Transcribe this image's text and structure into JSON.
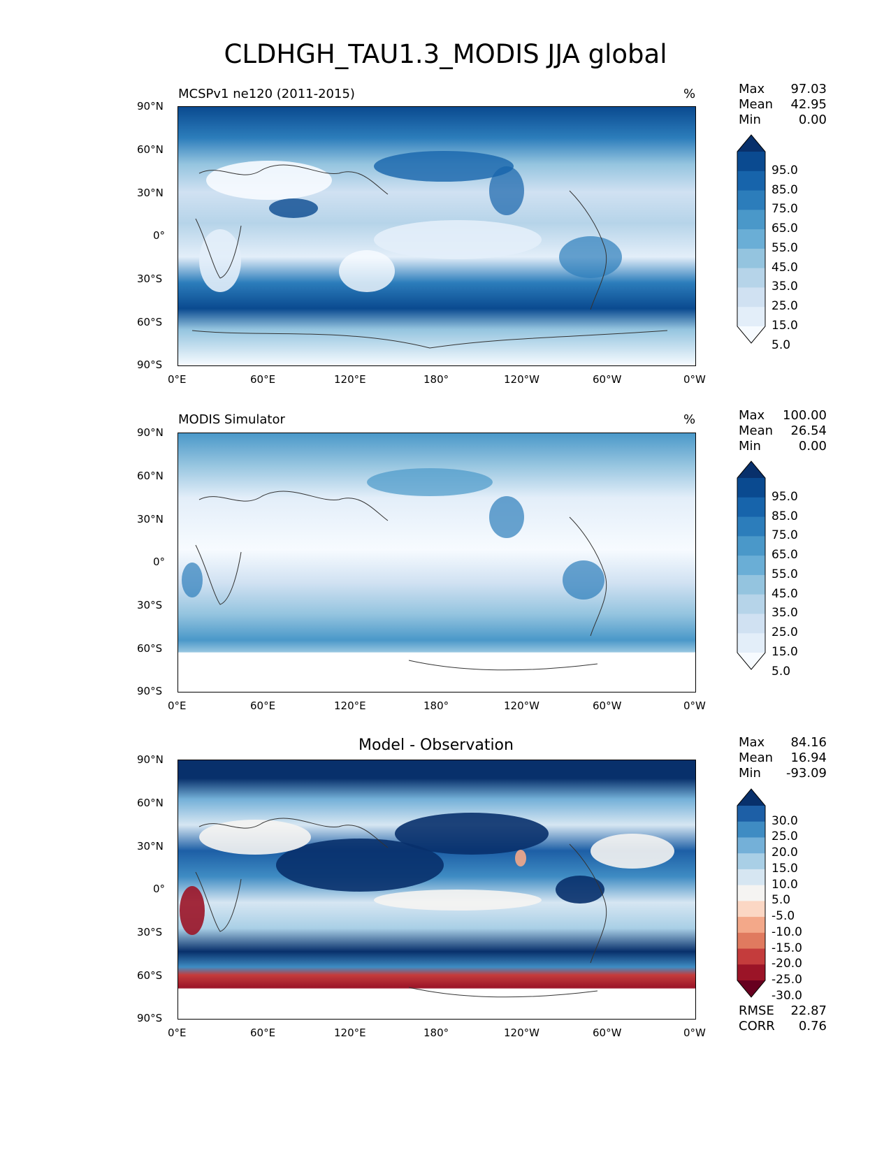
{
  "title": "CLDHGH_TAU1.3_MODIS JJA global",
  "x_ticks": [
    "0°E",
    "60°E",
    "120°E",
    "180°",
    "120°W",
    "60°W",
    "0°W"
  ],
  "y_ticks": [
    "90°N",
    "60°N",
    "30°N",
    "0°",
    "30°S",
    "60°S",
    "90°S"
  ],
  "panels": [
    {
      "title": "MCSPv1 ne120 (2011-2015)",
      "unit": "%",
      "stats": [
        {
          "label": "Max",
          "value": "97.03"
        },
        {
          "label": "Mean",
          "value": "42.95"
        },
        {
          "label": "Min",
          "value": "0.00"
        }
      ],
      "colorbar": {
        "labels": [
          "95.0",
          "85.0",
          "75.0",
          "65.0",
          "55.0",
          "45.0",
          "35.0",
          "25.0",
          "15.0",
          "5.0"
        ],
        "colors": [
          "#08306b",
          "#0a4a90",
          "#1764ab",
          "#2c7dbb",
          "#4a98c9",
          "#6aaed6",
          "#94c4df",
          "#b6d4e9",
          "#d0e1f2",
          "#e3eef9",
          "#f7fbff"
        ]
      }
    },
    {
      "title": "MODIS Simulator",
      "unit": "%",
      "stats": [
        {
          "label": "Max",
          "value": "100.00"
        },
        {
          "label": "Mean",
          "value": "26.54"
        },
        {
          "label": "Min",
          "value": "0.00"
        }
      ],
      "colorbar": {
        "labels": [
          "95.0",
          "85.0",
          "75.0",
          "65.0",
          "55.0",
          "45.0",
          "35.0",
          "25.0",
          "15.0",
          "5.0"
        ],
        "colors": [
          "#08306b",
          "#0a4a90",
          "#1764ab",
          "#2c7dbb",
          "#4a98c9",
          "#6aaed6",
          "#94c4df",
          "#b6d4e9",
          "#d0e1f2",
          "#e3eef9",
          "#f7fbff"
        ]
      }
    },
    {
      "title": "Model - Observation",
      "unit": "",
      "stats": [
        {
          "label": "Max",
          "value": "84.16"
        },
        {
          "label": "Mean",
          "value": "16.94"
        },
        {
          "label": "Min",
          "value": "-93.09"
        }
      ],
      "metrics": [
        {
          "label": "RMSE",
          "value": "22.87"
        },
        {
          "label": "CORR",
          "value": "0.76"
        }
      ],
      "colorbar": {
        "labels": [
          "30.0",
          "25.0",
          "20.0",
          "15.0",
          "10.0",
          "5.0",
          "-5.0",
          "-10.0",
          "-15.0",
          "-20.0",
          "-25.0",
          "-30.0"
        ],
        "colors": [
          "#08306b",
          "#1d5fa6",
          "#3f8cc3",
          "#74b0d8",
          "#a9cfe6",
          "#d6e6f2",
          "#f5f4f2",
          "#fbd7c4",
          "#f3a889",
          "#e07a5f",
          "#c43c3c",
          "#9b1427",
          "#67001f"
        ]
      }
    }
  ]
}
